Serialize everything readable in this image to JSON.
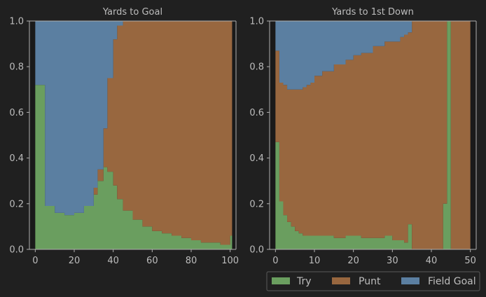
{
  "colors": {
    "background": "#202020",
    "plot_background": "#1a1a1a",
    "axis": "#b0b0b0",
    "text": "#bdbdbd",
    "try": "#6a9e5f",
    "punt": "#98673f",
    "field_goal": "#5b7fa1"
  },
  "legend": {
    "entries": [
      "Try",
      "Punt",
      "Field Goal"
    ],
    "placement": "bottom-right"
  },
  "chart_data": [
    {
      "type": "area",
      "stacked": true,
      "normalized": true,
      "title": "Yards to Goal",
      "xlabel": "",
      "ylabel": "",
      "xlim": [
        -3,
        103
      ],
      "ylim": [
        0,
        1
      ],
      "xticks": [
        0,
        20,
        40,
        60,
        80,
        100
      ],
      "yticks": [
        0.0,
        0.2,
        0.4,
        0.6,
        0.8,
        1.0
      ],
      "xtick_labels": [
        "0",
        "20",
        "40",
        "60",
        "80",
        "100"
      ],
      "ytick_labels": [
        "0.0",
        "0.2",
        "0.4",
        "0.6",
        "0.8",
        "1.0"
      ],
      "grid": false,
      "x": [
        0,
        5,
        10,
        15,
        20,
        25,
        30,
        32,
        35,
        37,
        40,
        42,
        45,
        50,
        55,
        60,
        65,
        70,
        75,
        80,
        85,
        90,
        95,
        99,
        100
      ],
      "series": [
        {
          "name": "Try",
          "values": [
            0.72,
            0.19,
            0.16,
            0.15,
            0.16,
            0.19,
            0.24,
            0.3,
            0.36,
            0.34,
            0.28,
            0.22,
            0.17,
            0.13,
            0.1,
            0.08,
            0.07,
            0.06,
            0.05,
            0.04,
            0.03,
            0.03,
            0.02,
            0.02,
            0.06
          ]
        },
        {
          "name": "Punt",
          "values": [
            0.0,
            0.0,
            0.0,
            0.0,
            0.0,
            0.0,
            0.03,
            0.05,
            0.17,
            0.41,
            0.64,
            0.76,
            0.83,
            0.87,
            0.9,
            0.92,
            0.93,
            0.94,
            0.95,
            0.96,
            0.97,
            0.97,
            0.98,
            0.98,
            0.94
          ]
        },
        {
          "name": "Field Goal",
          "values": [
            0.28,
            0.81,
            0.84,
            0.85,
            0.84,
            0.81,
            0.73,
            0.65,
            0.47,
            0.25,
            0.08,
            0.02,
            0.0,
            0.0,
            0.0,
            0.0,
            0.0,
            0.0,
            0.0,
            0.0,
            0.0,
            0.0,
            0.0,
            0.0,
            0.0
          ]
        }
      ]
    },
    {
      "type": "area",
      "stacked": true,
      "normalized": true,
      "title": "Yards to 1st Down",
      "xlabel": "",
      "ylabel": "",
      "xlim": [
        -1.5,
        51.5
      ],
      "ylim": [
        0,
        1
      ],
      "xticks": [
        0,
        10,
        20,
        30,
        40,
        50
      ],
      "yticks": [
        0.0,
        0.2,
        0.4,
        0.6,
        0.8,
        1.0
      ],
      "xtick_labels": [
        "0",
        "10",
        "20",
        "30",
        "40",
        "50"
      ],
      "ytick_labels": [
        "0.0",
        "0.2",
        "0.4",
        "0.6",
        "0.8",
        "1.0"
      ],
      "grid": false,
      "x": [
        0,
        1,
        2,
        3,
        4,
        5,
        6,
        7,
        8,
        9,
        10,
        12,
        15,
        18,
        20,
        22,
        25,
        28,
        30,
        32,
        33,
        34,
        35,
        43,
        44,
        45,
        46,
        49
      ],
      "series": [
        {
          "name": "Try",
          "values": [
            0.47,
            0.21,
            0.15,
            0.12,
            0.1,
            0.08,
            0.07,
            0.06,
            0.06,
            0.06,
            0.06,
            0.06,
            0.05,
            0.06,
            0.06,
            0.05,
            0.05,
            0.06,
            0.04,
            0.04,
            0.03,
            0.11,
            0.0,
            0.2,
            1.0,
            0.0,
            0.0,
            0.0
          ]
        },
        {
          "name": "Punt",
          "values": [
            0.4,
            0.52,
            0.57,
            0.58,
            0.6,
            0.62,
            0.63,
            0.65,
            0.66,
            0.67,
            0.7,
            0.72,
            0.76,
            0.77,
            0.79,
            0.81,
            0.84,
            0.85,
            0.87,
            0.89,
            0.91,
            0.84,
            1.0,
            0.8,
            0.0,
            1.0,
            1.0,
            1.0
          ]
        },
        {
          "name": "Field Goal",
          "values": [
            0.13,
            0.27,
            0.28,
            0.3,
            0.3,
            0.3,
            0.3,
            0.29,
            0.28,
            0.27,
            0.24,
            0.22,
            0.19,
            0.17,
            0.15,
            0.14,
            0.11,
            0.09,
            0.09,
            0.07,
            0.06,
            0.05,
            0.0,
            0.0,
            0.0,
            0.0,
            0.0,
            0.0
          ]
        }
      ]
    }
  ]
}
